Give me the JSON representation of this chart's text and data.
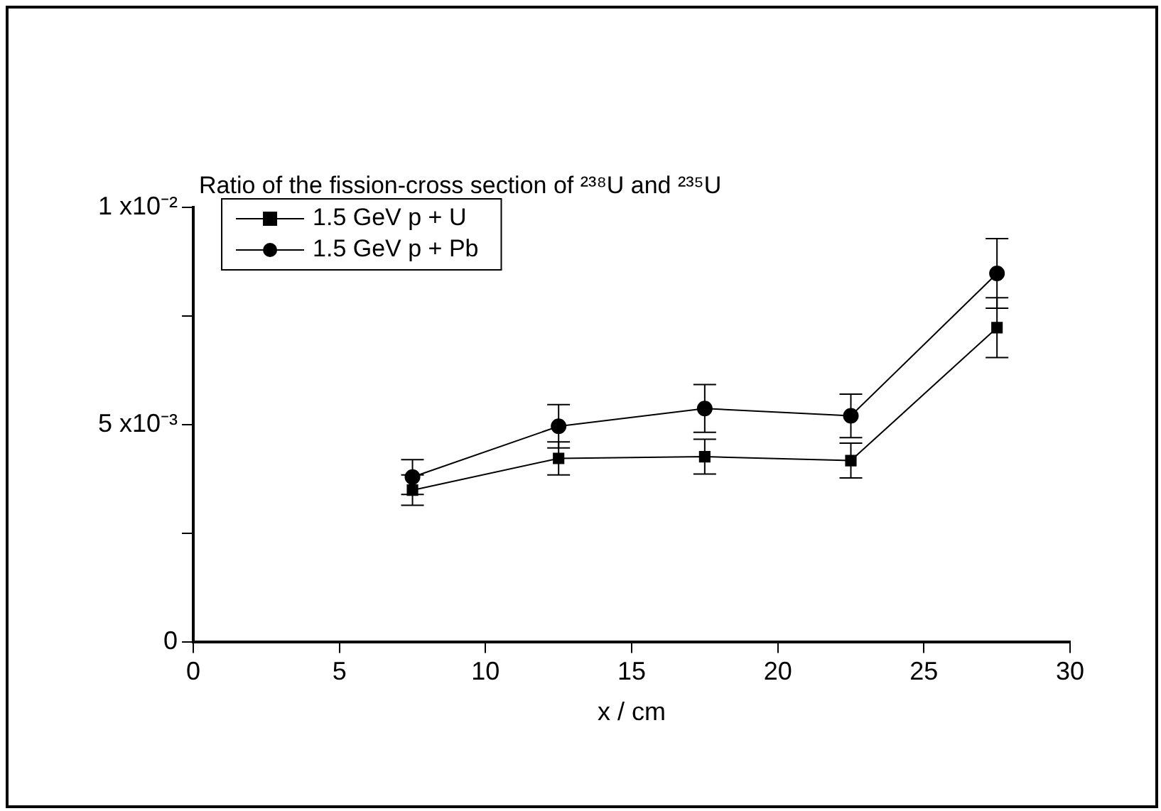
{
  "chart_data": {
    "type": "line",
    "title": "Ratio of the fission-cross section of ²³⁸U and ²³⁵U",
    "xlabel": "x / cm",
    "x": [
      7.5,
      12.5,
      17.5,
      22.5,
      27.5
    ],
    "series": [
      {
        "name": "1.5 GeV p + U",
        "color": "#000000",
        "marker": "square",
        "values": [
          0.00349,
          0.00422,
          0.00426,
          0.00417,
          0.00723
        ],
        "errors": [
          0.00035,
          0.00038,
          0.0004,
          0.0004,
          0.00069
        ]
      },
      {
        "name": "1.5 GeV p + Pb",
        "color": "#000000",
        "marker": "circle",
        "values": [
          0.00379,
          0.00496,
          0.00537,
          0.0052,
          0.00848
        ],
        "errors": [
          0.0004,
          0.0005,
          0.00055,
          0.0005,
          0.0008
        ]
      }
    ],
    "xlim": [
      0,
      30
    ],
    "xticks": [
      0,
      5,
      10,
      15,
      20,
      25,
      30
    ],
    "ylim": [
      0,
      0.01
    ],
    "yticks": [
      {
        "value": 0,
        "label": "0"
      },
      {
        "value": 0.0025,
        "label": null
      },
      {
        "value": 0.005,
        "label": "5 x10⁻³"
      },
      {
        "value": 0.0075,
        "label": null
      },
      {
        "value": 0.01,
        "label": "1 x10⁻²"
      }
    ],
    "grid": false,
    "legend": "top left",
    "line_style": "solid"
  }
}
